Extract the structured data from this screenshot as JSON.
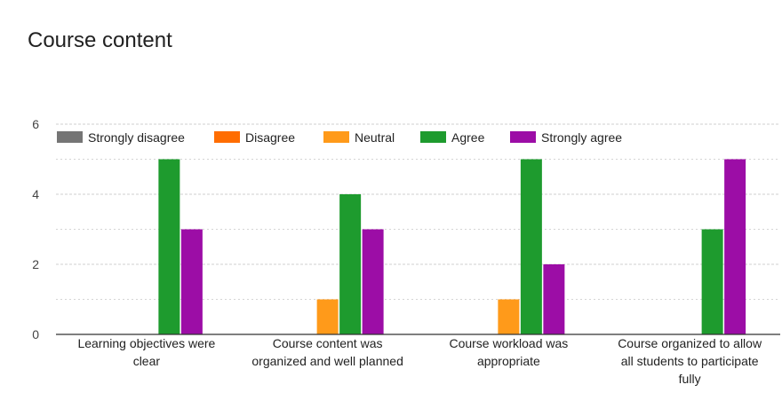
{
  "title": "Course content",
  "colors": {
    "Strongly disagree": "#757575",
    "Disagree": "#ff6d01",
    "Neutral": "#ff9a1a",
    "Agree": "#1e9b2e",
    "Strongly agree": "#9c0da6"
  },
  "chart_data": {
    "type": "bar",
    "title": "Course content",
    "xlabel": "",
    "ylabel": "",
    "ylim": [
      0,
      6
    ],
    "yticks": [
      0,
      2,
      4,
      6
    ],
    "grid": true,
    "legend_position": "top",
    "categories": [
      [
        "Learning objectives were",
        "clear"
      ],
      [
        "Course content was",
        "organized and well planned"
      ],
      [
        "Course workload was",
        "appropriate"
      ],
      [
        "Course organized to allow",
        "all students to participate",
        "fully"
      ]
    ],
    "series": [
      {
        "name": "Strongly disagree",
        "values": [
          0,
          0,
          0,
          0
        ]
      },
      {
        "name": "Disagree",
        "values": [
          0,
          0,
          0,
          0
        ]
      },
      {
        "name": "Neutral",
        "values": [
          0,
          1,
          1,
          0
        ]
      },
      {
        "name": "Agree",
        "values": [
          5,
          4,
          5,
          3
        ]
      },
      {
        "name": "Strongly agree",
        "values": [
          3,
          3,
          2,
          5
        ]
      }
    ]
  }
}
